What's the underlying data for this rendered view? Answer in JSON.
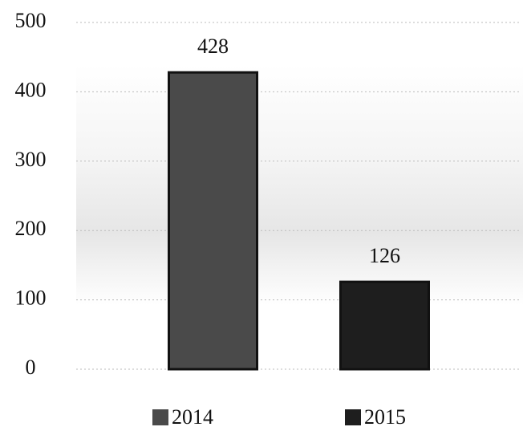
{
  "chart_data": {
    "type": "bar",
    "categories": [
      null
    ],
    "series": [
      {
        "name": "2014",
        "color": "#4a4a4a",
        "values": [
          428
        ]
      },
      {
        "name": "2015",
        "color": "#1e1e1e",
        "values": [
          126
        ]
      }
    ],
    "ylim": [
      0,
      500
    ],
    "yticks": [
      0,
      100,
      200,
      300,
      400,
      500
    ],
    "grid": true,
    "legend": "bottom"
  }
}
